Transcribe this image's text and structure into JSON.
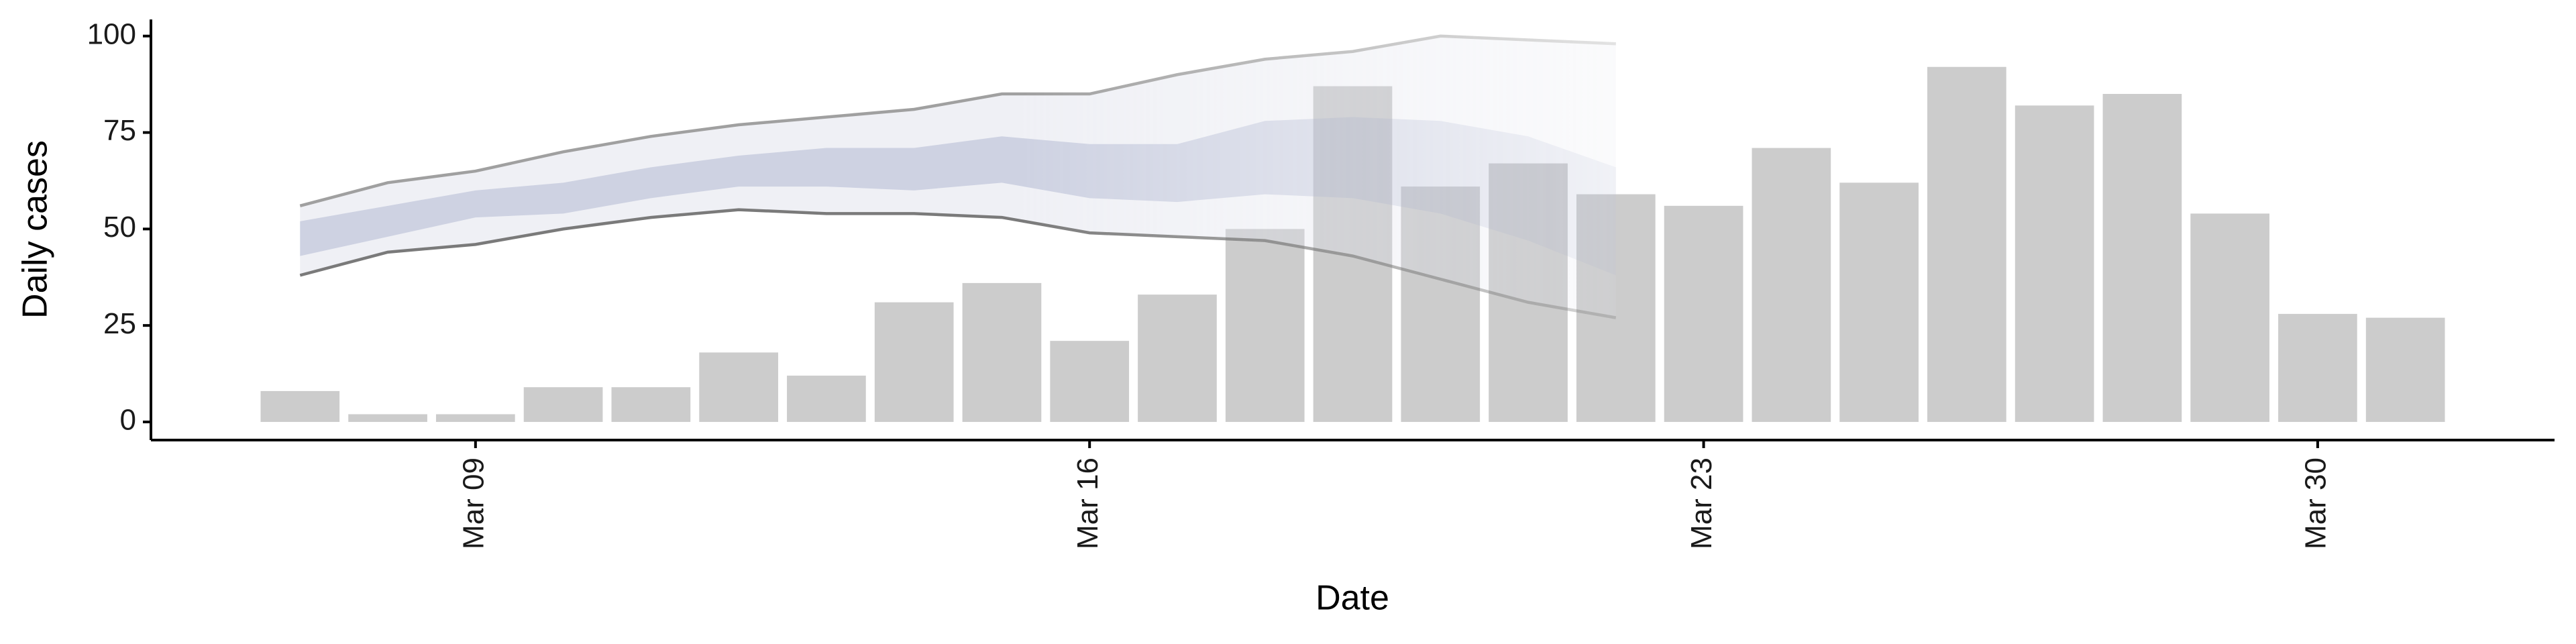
{
  "chart_data": {
    "type": "bar",
    "xlabel": "Date",
    "ylabel": "Daily cases",
    "x": [
      7,
      8,
      9,
      10,
      11,
      12,
      13,
      14,
      15,
      16,
      17,
      18,
      19,
      20,
      21,
      22,
      23,
      24,
      25,
      26,
      27,
      28,
      29,
      30,
      31
    ],
    "values": [
      8,
      2,
      2,
      9,
      9,
      18,
      12,
      31,
      36,
      21,
      33,
      50,
      87,
      61,
      67,
      59,
      56,
      71,
      62,
      92,
      82,
      85,
      54,
      28,
      27
    ],
    "color": "#cccccc",
    "bands": {
      "x": [
        7,
        8,
        9,
        10,
        11,
        12,
        13,
        14,
        15,
        16,
        17,
        18,
        19,
        20,
        21,
        22
      ],
      "outer": {
        "color": "#dfe2ec",
        "upper": [
          56,
          62,
          65,
          70,
          74,
          77,
          79,
          81,
          85,
          85,
          90,
          94,
          96,
          100,
          99,
          98
        ],
        "lower": [
          38,
          44,
          46,
          50,
          53,
          55,
          54,
          54,
          53,
          49,
          48,
          47,
          43,
          37,
          31,
          27
        ]
      },
      "inner": {
        "color": "#b7bed6",
        "upper": [
          52,
          56,
          60,
          62,
          66,
          69,
          71,
          71,
          74,
          72,
          72,
          78,
          79,
          78,
          74,
          66
        ],
        "lower": [
          43,
          48,
          53,
          54,
          58,
          61,
          61,
          60,
          62,
          58,
          57,
          59,
          58,
          54,
          47,
          38
        ]
      }
    },
    "xlim": [
      5.3,
      32.7
    ],
    "ylim": [
      -4.7,
      104.3
    ],
    "xticks": [
      {
        "value": 9,
        "label": "Mar 09"
      },
      {
        "value": 16,
        "label": "Mar 16"
      },
      {
        "value": 23,
        "label": "Mar 23"
      },
      {
        "value": 30,
        "label": "Mar 30"
      }
    ],
    "yticks": [
      0,
      25,
      50,
      75,
      100
    ]
  }
}
